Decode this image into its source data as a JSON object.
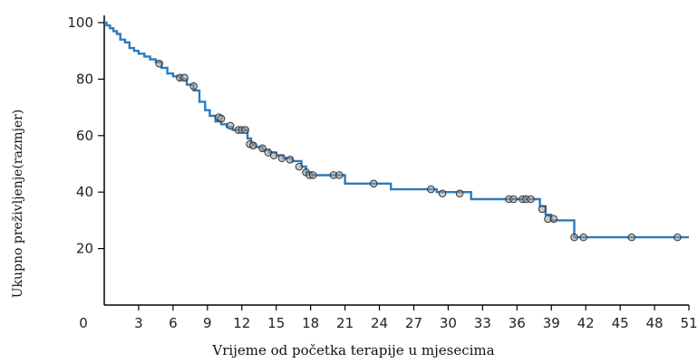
{
  "chart_data": {
    "type": "line",
    "title": "",
    "xlabel": "Vrijeme od početka terapije u mjesecima",
    "ylabel": "Ukupno preživljenje(razmjer)",
    "xlim": [
      0,
      51
    ],
    "ylim": [
      0,
      100
    ],
    "x_ticks": [
      0,
      3,
      6,
      9,
      12,
      15,
      18,
      21,
      24,
      27,
      30,
      33,
      36,
      39,
      42,
      45,
      48,
      51
    ],
    "y_ticks": [
      20,
      40,
      60,
      80,
      100
    ],
    "grid": false,
    "legend": "none",
    "line_color": "#2b7bbf",
    "series": [
      {
        "x": [
          0,
          0.2,
          0.5,
          0.8,
          1.1,
          1.4,
          1.8,
          2.2,
          2.6,
          3.0,
          3.5,
          4.0,
          4.5,
          5.0,
          5.5,
          6.0,
          6.6,
          7.2,
          7.8,
          8.3,
          8.8,
          9.2,
          9.7,
          10.2,
          10.7,
          11.2,
          11.6,
          12.2,
          12.5,
          12.8,
          13.2,
          13.8,
          14.4,
          15.0,
          15.6,
          16.4,
          17.2,
          17.6,
          18.0,
          20.4,
          21.0,
          24.0,
          25.0,
          28.0,
          29.0,
          31.0,
          32.0,
          37.5,
          38.0,
          38.5,
          39.0,
          39.5,
          41.0,
          51.0
        ],
        "y": [
          100,
          99,
          98,
          97,
          96,
          94,
          93,
          91,
          90,
          89,
          88,
          87,
          86,
          84,
          82,
          81,
          80,
          78,
          76,
          72,
          69,
          67,
          65,
          64,
          63,
          62,
          62,
          62,
          59,
          57,
          56,
          55,
          54,
          53,
          52,
          51,
          49,
          47,
          46,
          46,
          43,
          43,
          41,
          41,
          40,
          40,
          37.5,
          37.5,
          35,
          32,
          30,
          30,
          24,
          24
        ]
      }
    ],
    "censor_points": [
      {
        "x": 4.8,
        "y": 85.5
      },
      {
        "x": 6.6,
        "y": 80.5
      },
      {
        "x": 7.0,
        "y": 80.5
      },
      {
        "x": 7.8,
        "y": 77.5
      },
      {
        "x": 10.0,
        "y": 66.5
      },
      {
        "x": 10.2,
        "y": 66
      },
      {
        "x": 11.0,
        "y": 63.5
      },
      {
        "x": 11.7,
        "y": 62
      },
      {
        "x": 12.0,
        "y": 62
      },
      {
        "x": 12.3,
        "y": 62
      },
      {
        "x": 12.7,
        "y": 57
      },
      {
        "x": 13.0,
        "y": 56.5
      },
      {
        "x": 13.8,
        "y": 55.5
      },
      {
        "x": 14.3,
        "y": 54
      },
      {
        "x": 14.8,
        "y": 53
      },
      {
        "x": 15.5,
        "y": 52
      },
      {
        "x": 16.2,
        "y": 51.5
      },
      {
        "x": 17.0,
        "y": 49
      },
      {
        "x": 17.6,
        "y": 47
      },
      {
        "x": 17.9,
        "y": 46
      },
      {
        "x": 18.2,
        "y": 46
      },
      {
        "x": 20.0,
        "y": 46
      },
      {
        "x": 20.5,
        "y": 46
      },
      {
        "x": 23.5,
        "y": 43
      },
      {
        "x": 28.5,
        "y": 41
      },
      {
        "x": 29.5,
        "y": 39.5
      },
      {
        "x": 31.0,
        "y": 39.5
      },
      {
        "x": 35.3,
        "y": 37.5
      },
      {
        "x": 35.7,
        "y": 37.5
      },
      {
        "x": 36.5,
        "y": 37.5
      },
      {
        "x": 36.8,
        "y": 37.5
      },
      {
        "x": 37.2,
        "y": 37.5
      },
      {
        "x": 38.2,
        "y": 34
      },
      {
        "x": 38.7,
        "y": 30.5
      },
      {
        "x": 39.2,
        "y": 30.5
      },
      {
        "x": 41.0,
        "y": 24
      },
      {
        "x": 41.8,
        "y": 24
      },
      {
        "x": 46.0,
        "y": 24
      },
      {
        "x": 50.0,
        "y": 24
      }
    ]
  }
}
